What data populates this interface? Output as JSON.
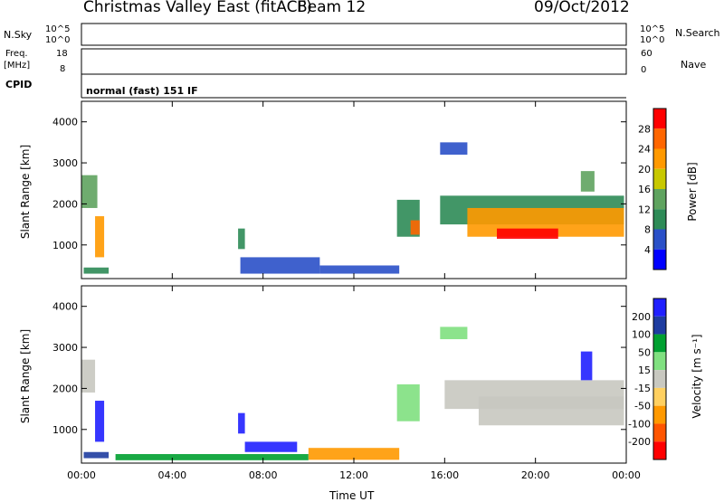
{
  "header": {
    "station": "Christmas Valley East (fitACF)",
    "beam": "Beam 12",
    "date": "09/Oct/2012"
  },
  "panels": {
    "nsky": {
      "label": "N.Sky",
      "tick_top": "10^5",
      "tick_bottom": "10^0"
    },
    "nsearch": {
      "label": "N.Search",
      "tick_top": "10^5",
      "tick_bottom": "10^0"
    },
    "freq": {
      "label_line1": "Freq.",
      "label_line2": "[MHz]",
      "tick_top": "18",
      "tick_bottom": "8"
    },
    "nave": {
      "label": "Nave",
      "tick_top": "60",
      "tick_bottom": "0"
    },
    "cpid": {
      "label": "CPID",
      "value": "normal (fast) 151 IF"
    }
  },
  "colors": {
    "power": [
      "#0000ff",
      "#2a50c8",
      "#2e8b57",
      "#5fa35f",
      "#c8c800",
      "#ff9900",
      "#ff6600",
      "#ff0000"
    ],
    "velocity": [
      "#2020ff",
      "#1e3ca0",
      "#00a030",
      "#80e080",
      "#c8c8c0",
      "#ffd060",
      "#ff9900",
      "#ff5500",
      "#ff0000"
    ]
  },
  "chart_data": [
    {
      "type": "heatmap",
      "name": "power",
      "xlabel": "",
      "ylabel": "Slant Range [km]",
      "xlim": [
        0,
        24
      ],
      "ylim": [
        180,
        4500
      ],
      "y_ticks": [
        "1000",
        "2000",
        "3000",
        "4000"
      ],
      "colorbar": {
        "label": "Power [dB]",
        "ticks": [
          "4",
          "8",
          "12",
          "16",
          "20",
          "24",
          "28"
        ]
      },
      "regions": [
        {
          "t0": 0.0,
          "t1": 0.7,
          "r0": 1900,
          "r1": 2700,
          "level": 3
        },
        {
          "t0": 0.6,
          "t1": 1.0,
          "r0": 700,
          "r1": 1700,
          "level": 5
        },
        {
          "t0": 0.1,
          "t1": 1.2,
          "r0": 300,
          "r1": 450,
          "level": 2
        },
        {
          "t0": 6.9,
          "t1": 7.2,
          "r0": 900,
          "r1": 1400,
          "level": 2
        },
        {
          "t0": 7.0,
          "t1": 10.5,
          "r0": 300,
          "r1": 700,
          "level": 1
        },
        {
          "t0": 10.5,
          "t1": 14.0,
          "r0": 300,
          "r1": 500,
          "level": 1
        },
        {
          "t0": 13.9,
          "t1": 14.9,
          "r0": 1200,
          "r1": 2100,
          "level": 2
        },
        {
          "t0": 14.5,
          "t1": 14.9,
          "r0": 1250,
          "r1": 1600,
          "level": 6
        },
        {
          "t0": 15.8,
          "t1": 17.0,
          "r0": 3200,
          "r1": 3500,
          "level": 1
        },
        {
          "t0": 15.8,
          "t1": 23.9,
          "r0": 1500,
          "r1": 2200,
          "level": 2
        },
        {
          "t0": 17.0,
          "t1": 23.9,
          "r0": 1200,
          "r1": 1900,
          "level": 5
        },
        {
          "t0": 18.3,
          "t1": 21.0,
          "r0": 1150,
          "r1": 1400,
          "level": 7
        },
        {
          "t0": 22.0,
          "t1": 22.6,
          "r0": 2300,
          "r1": 2800,
          "level": 3
        }
      ]
    },
    {
      "type": "heatmap",
      "name": "velocity",
      "xlabel": "Time UT",
      "ylabel": "Slant Range [km]",
      "xlim": [
        0,
        24
      ],
      "ylim": [
        180,
        4500
      ],
      "x_ticks": [
        "00:00",
        "04:00",
        "08:00",
        "12:00",
        "16:00",
        "20:00",
        "00:00"
      ],
      "y_ticks": [
        "1000",
        "2000",
        "3000",
        "4000"
      ],
      "colorbar": {
        "label": "Velocity [m s⁻¹]",
        "ticks": [
          "200",
          "100",
          "50",
          "15",
          "-15",
          "-50",
          "-100",
          "-200"
        ]
      },
      "regions": [
        {
          "t0": 0.0,
          "t1": 0.6,
          "r0": 1900,
          "r1": 2700,
          "level": 4
        },
        {
          "t0": 0.6,
          "t1": 1.0,
          "r0": 700,
          "r1": 1700,
          "level": 0
        },
        {
          "t0": 0.1,
          "t1": 1.2,
          "r0": 300,
          "r1": 450,
          "level": 1
        },
        {
          "t0": 6.9,
          "t1": 7.2,
          "r0": 900,
          "r1": 1400,
          "level": 0
        },
        {
          "t0": 7.2,
          "t1": 9.5,
          "r0": 450,
          "r1": 700,
          "level": 0
        },
        {
          "t0": 1.5,
          "t1": 10.0,
          "r0": 250,
          "r1": 400,
          "level": 2
        },
        {
          "t0": 10.0,
          "t1": 14.0,
          "r0": 260,
          "r1": 550,
          "level": 6
        },
        {
          "t0": 13.9,
          "t1": 14.9,
          "r0": 1200,
          "r1": 2100,
          "level": 3
        },
        {
          "t0": 15.8,
          "t1": 17.0,
          "r0": 3200,
          "r1": 3500,
          "level": 3
        },
        {
          "t0": 16.0,
          "t1": 23.9,
          "r0": 1500,
          "r1": 2200,
          "level": 4
        },
        {
          "t0": 17.5,
          "t1": 23.9,
          "r0": 1100,
          "r1": 1800,
          "level": 4
        },
        {
          "t0": 22.0,
          "t1": 22.5,
          "r0": 2200,
          "r1": 2900,
          "level": 0
        }
      ]
    }
  ]
}
